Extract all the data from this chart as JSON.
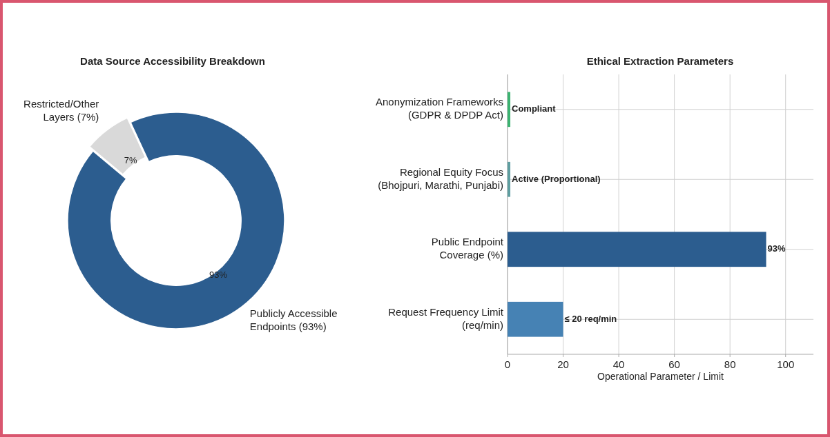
{
  "chart_data": [
    {
      "type": "donut",
      "title": "Data Source Accessibility Breakdown",
      "categories": [
        "Publicly Accessible Endpoints (93%)",
        "Restricted/Other Layers (7%)"
      ],
      "values": [
        93,
        7
      ],
      "colors": [
        "#2c5d8f",
        "#d9d9d9"
      ],
      "value_labels": [
        "93%",
        "7%"
      ]
    },
    {
      "type": "bar",
      "orientation": "horizontal",
      "title": "Ethical Extraction Parameters",
      "xlabel": "Operational Parameter / Limit",
      "categories": [
        "Anonymization Frameworks\n(GDPR & DPDP Act)",
        "Regional Equity Focus\n(Bhojpuri, Marathi, Punjabi)",
        "Public Endpoint\nCoverage (%)",
        "Request Frequency Limit\n(req/min)"
      ],
      "values": [
        1,
        1,
        93,
        20
      ],
      "colors": [
        "#3cb371",
        "#5f9ea0",
        "#2c5d8f",
        "#4682b4"
      ],
      "value_labels": [
        "Compliant",
        "Active (Proportional)",
        "93%",
        "≤ 20 req/min"
      ],
      "xlim": [
        0,
        110
      ],
      "xticks": [
        0,
        20,
        40,
        60,
        80,
        100
      ],
      "grid": true
    }
  ]
}
